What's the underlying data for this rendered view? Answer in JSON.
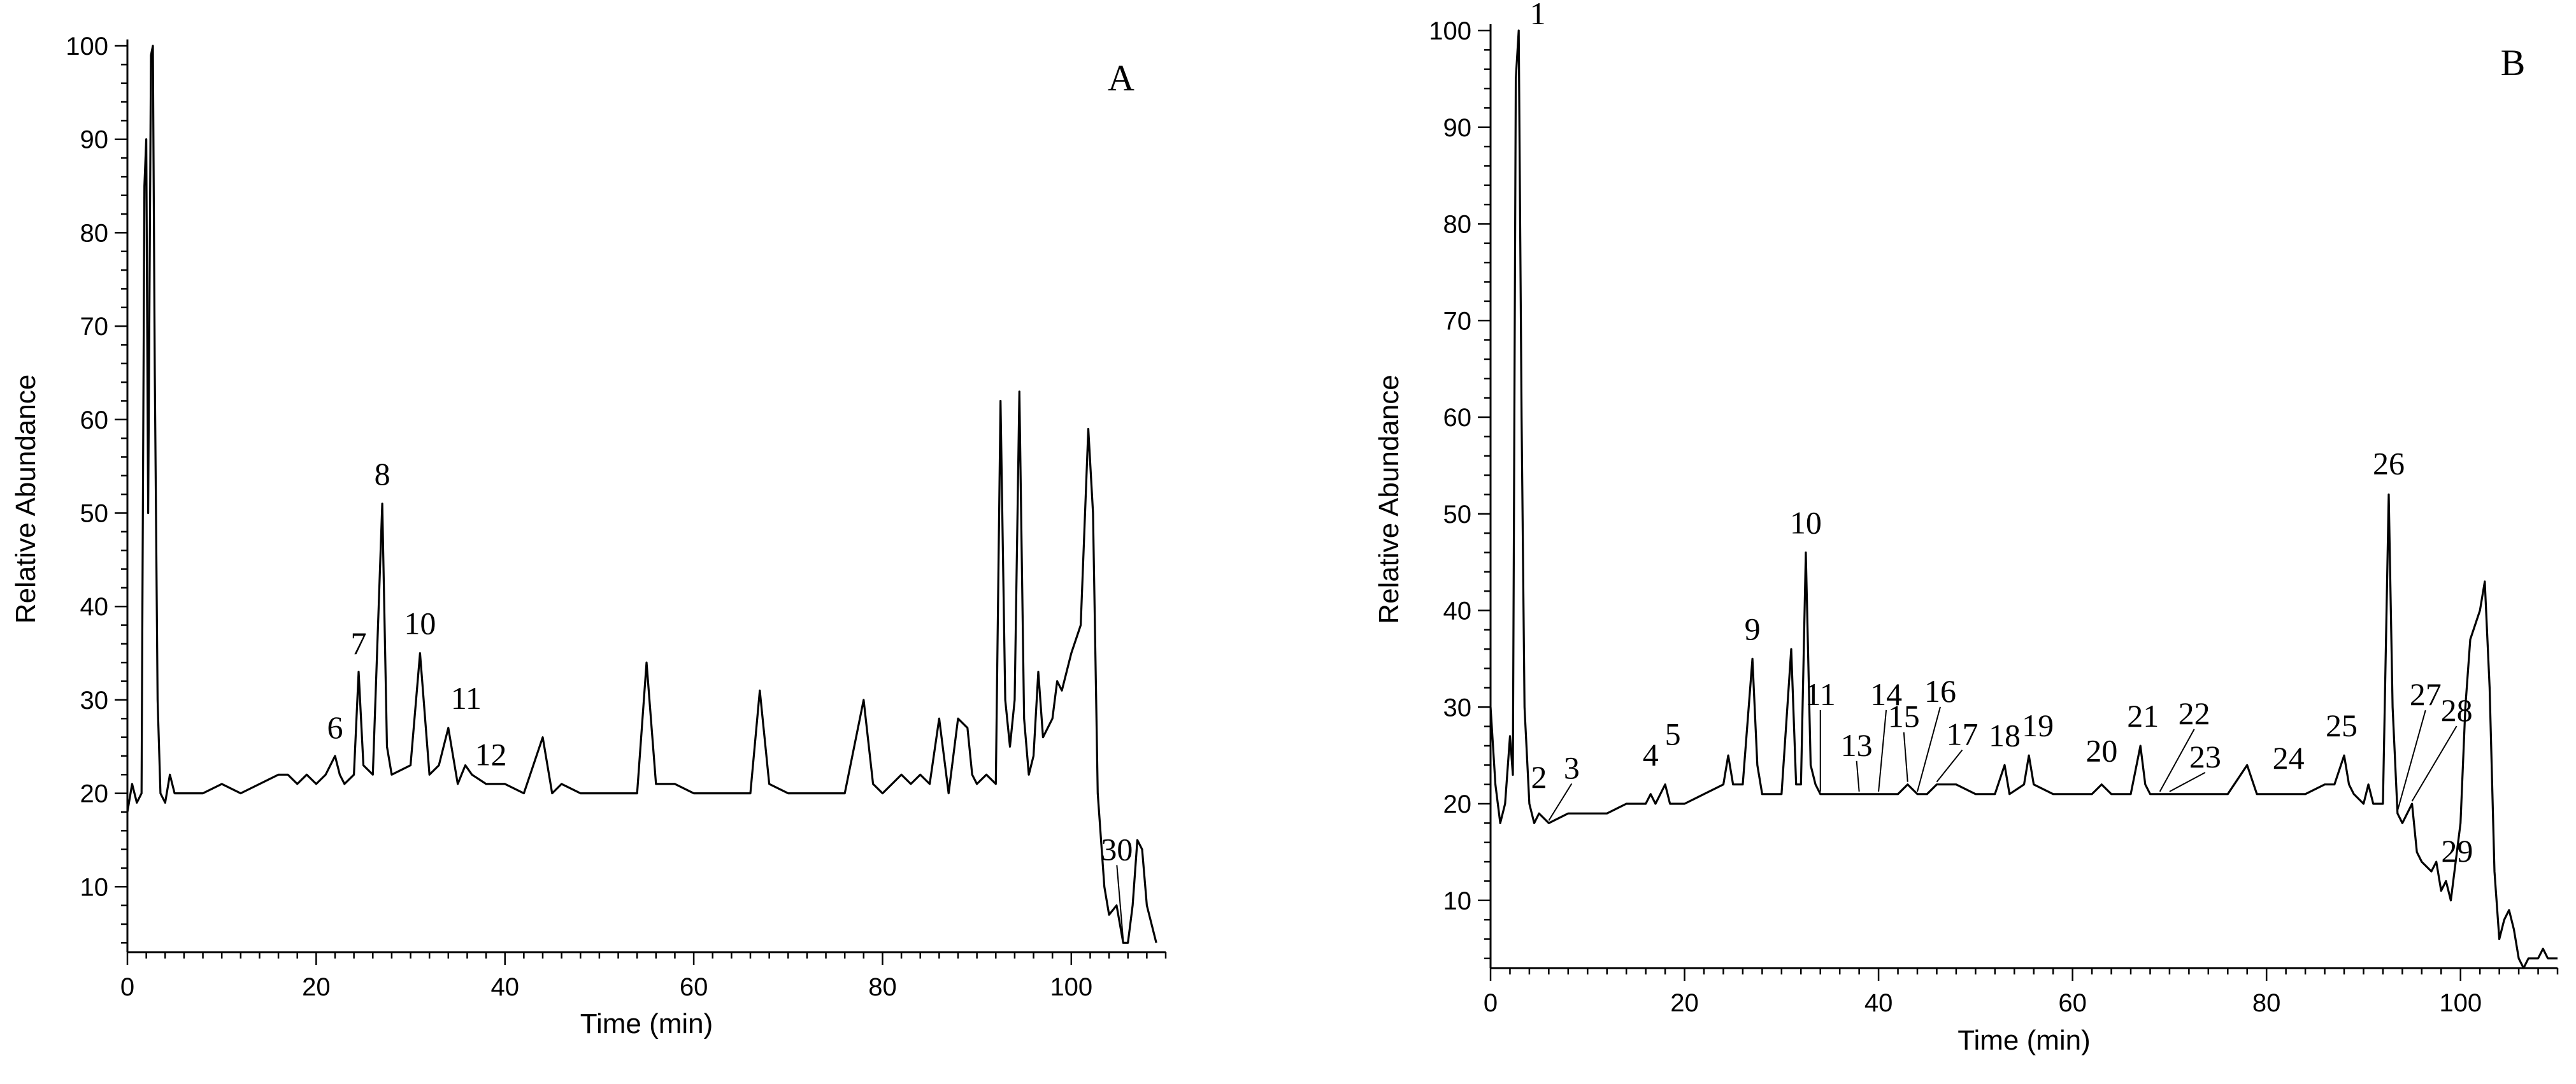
{
  "chart_data": [
    {
      "type": "line",
      "panel_label": "A",
      "xlabel": "Time (min)",
      "ylabel": "Relative Abundance",
      "xlim": [
        0,
        110
      ],
      "ylim": [
        3,
        100
      ],
      "x_ticks": [
        0,
        20,
        40,
        60,
        80,
        100
      ],
      "y_ticks": [
        10,
        20,
        30,
        40,
        50,
        60,
        70,
        80,
        90,
        100
      ],
      "baseline": 20,
      "trace_points": [
        [
          0,
          18
        ],
        [
          0.5,
          21
        ],
        [
          1,
          19
        ],
        [
          1.5,
          20
        ],
        [
          1.8,
          85
        ],
        [
          2.0,
          90
        ],
        [
          2.2,
          50
        ],
        [
          2.5,
          99
        ],
        [
          2.7,
          100
        ],
        [
          2.9,
          65
        ],
        [
          3.2,
          30
        ],
        [
          3.5,
          20
        ],
        [
          4,
          19
        ],
        [
          4.5,
          22
        ],
        [
          5,
          20
        ],
        [
          6,
          20
        ],
        [
          8,
          20
        ],
        [
          10,
          21
        ],
        [
          12,
          20
        ],
        [
          14,
          21
        ],
        [
          16,
          22
        ],
        [
          17,
          22
        ],
        [
          18,
          21
        ],
        [
          19,
          22
        ],
        [
          20,
          21
        ],
        [
          21,
          22
        ],
        [
          22,
          24
        ],
        [
          22.5,
          22
        ],
        [
          23,
          21
        ],
        [
          24,
          22
        ],
        [
          24.5,
          33
        ],
        [
          25,
          23
        ],
        [
          26,
          22
        ],
        [
          27,
          51
        ],
        [
          27.5,
          25
        ],
        [
          28,
          22
        ],
        [
          30,
          23
        ],
        [
          31,
          35
        ],
        [
          32,
          22
        ],
        [
          33,
          23
        ],
        [
          34,
          27
        ],
        [
          35,
          21
        ],
        [
          35.8,
          23
        ],
        [
          36.5,
          22
        ],
        [
          38,
          21
        ],
        [
          40,
          21
        ],
        [
          42,
          20
        ],
        [
          44,
          26
        ],
        [
          45,
          20
        ],
        [
          46,
          21
        ],
        [
          48,
          20
        ],
        [
          50,
          20
        ],
        [
          52,
          20
        ],
        [
          54,
          20
        ],
        [
          55,
          34
        ],
        [
          56,
          21
        ],
        [
          58,
          21
        ],
        [
          60,
          20
        ],
        [
          62,
          20
        ],
        [
          64,
          20
        ],
        [
          66,
          20
        ],
        [
          67,
          31
        ],
        [
          68,
          21
        ],
        [
          70,
          20
        ],
        [
          72,
          20
        ],
        [
          74,
          20
        ],
        [
          76,
          20
        ],
        [
          78,
          30
        ],
        [
          79,
          21
        ],
        [
          80,
          20
        ],
        [
          82,
          22
        ],
        [
          83,
          21
        ],
        [
          84,
          22
        ],
        [
          85,
          21
        ],
        [
          86,
          28
        ],
        [
          87,
          20
        ],
        [
          88,
          28
        ],
        [
          89,
          27
        ],
        [
          89.5,
          22
        ],
        [
          90,
          21
        ],
        [
          91,
          22
        ],
        [
          92,
          21
        ],
        [
          92.5,
          62
        ],
        [
          93,
          30
        ],
        [
          93.5,
          25
        ],
        [
          94,
          30
        ],
        [
          94.5,
          63
        ],
        [
          95,
          28
        ],
        [
          95.5,
          22
        ],
        [
          96,
          24
        ],
        [
          96.5,
          33
        ],
        [
          97,
          26
        ],
        [
          98,
          28
        ],
        [
          98.5,
          32
        ],
        [
          99,
          31
        ],
        [
          100,
          35
        ],
        [
          101,
          38
        ],
        [
          101.8,
          59
        ],
        [
          102.3,
          50
        ],
        [
          102.8,
          20
        ],
        [
          103.5,
          10
        ],
        [
          104,
          7
        ],
        [
          104.8,
          8
        ],
        [
          105.5,
          4
        ],
        [
          106,
          4
        ],
        [
          106.5,
          8
        ],
        [
          107,
          15
        ],
        [
          107.5,
          14
        ],
        [
          108,
          8
        ],
        [
          108.5,
          6
        ],
        [
          109,
          4
        ]
      ],
      "peak_labels": [
        {
          "id": "6",
          "x": 22,
          "y": 24
        },
        {
          "id": "7",
          "x": 24.5,
          "y": 33
        },
        {
          "id": "8",
          "x": 27,
          "y": 51
        },
        {
          "id": "10",
          "x": 31,
          "y": 35
        },
        {
          "id": "11",
          "x": 34,
          "y": 27
        },
        {
          "id": "12",
          "x": 35.8,
          "y": 23
        },
        {
          "id": "30",
          "x": 105.5,
          "y": 4
        }
      ]
    },
    {
      "type": "line",
      "panel_label": "B",
      "xlabel": "Time (min)",
      "ylabel": "Relative Abundance",
      "xlim": [
        0,
        110
      ],
      "ylim": [
        3,
        100
      ],
      "x_ticks": [
        0,
        20,
        40,
        60,
        80,
        100
      ],
      "y_ticks": [
        10,
        20,
        30,
        40,
        50,
        60,
        70,
        80,
        90,
        100
      ],
      "baseline": 20,
      "trace_points": [
        [
          0,
          30
        ],
        [
          0.5,
          22
        ],
        [
          1,
          18
        ],
        [
          1.5,
          20
        ],
        [
          2,
          27
        ],
        [
          2.3,
          23
        ],
        [
          2.6,
          95
        ],
        [
          2.9,
          100
        ],
        [
          3.2,
          60
        ],
        [
          3.5,
          30
        ],
        [
          4,
          20
        ],
        [
          4.5,
          18
        ],
        [
          5,
          19
        ],
        [
          6,
          18
        ],
        [
          8,
          19
        ],
        [
          10,
          19
        ],
        [
          12,
          19
        ],
        [
          14,
          20
        ],
        [
          16,
          20
        ],
        [
          16.5,
          21
        ],
        [
          17,
          20
        ],
        [
          18,
          22
        ],
        [
          18.5,
          20
        ],
        [
          20,
          20
        ],
        [
          22,
          21
        ],
        [
          24,
          22
        ],
        [
          24.5,
          25
        ],
        [
          25,
          22
        ],
        [
          26,
          22
        ],
        [
          27,
          35
        ],
        [
          27.5,
          24
        ],
        [
          28,
          21
        ],
        [
          30,
          21
        ],
        [
          31,
          36
        ],
        [
          31.5,
          22
        ],
        [
          32,
          22
        ],
        [
          32.5,
          46
        ],
        [
          33,
          24
        ],
        [
          33.5,
          22
        ],
        [
          34,
          21
        ],
        [
          36,
          21
        ],
        [
          38,
          21
        ],
        [
          40,
          21
        ],
        [
          42,
          21
        ],
        [
          43,
          22
        ],
        [
          44,
          21
        ],
        [
          45,
          21
        ],
        [
          46,
          22
        ],
        [
          48,
          22
        ],
        [
          50,
          21
        ],
        [
          52,
          21
        ],
        [
          53,
          24
        ],
        [
          53.5,
          21
        ],
        [
          55,
          22
        ],
        [
          55.5,
          25
        ],
        [
          56,
          22
        ],
        [
          58,
          21
        ],
        [
          60,
          21
        ],
        [
          62,
          21
        ],
        [
          63,
          22
        ],
        [
          64,
          21
        ],
        [
          66,
          21
        ],
        [
          67,
          26
        ],
        [
          67.5,
          22
        ],
        [
          68,
          21
        ],
        [
          70,
          21
        ],
        [
          72,
          21
        ],
        [
          74,
          21
        ],
        [
          76,
          21
        ],
        [
          78,
          24
        ],
        [
          79,
          21
        ],
        [
          80,
          21
        ],
        [
          82,
          21
        ],
        [
          84,
          21
        ],
        [
          86,
          22
        ],
        [
          87,
          22
        ],
        [
          88,
          25
        ],
        [
          88.5,
          22
        ],
        [
          89,
          21
        ],
        [
          90,
          20
        ],
        [
          90.5,
          22
        ],
        [
          91,
          20
        ],
        [
          92,
          20
        ],
        [
          92.6,
          52
        ],
        [
          93,
          30
        ],
        [
          93.5,
          19
        ],
        [
          94,
          18
        ],
        [
          95,
          20
        ],
        [
          95.5,
          15
        ],
        [
          96,
          14
        ],
        [
          97,
          13
        ],
        [
          97.5,
          14
        ],
        [
          98,
          11
        ],
        [
          98.5,
          12
        ],
        [
          99,
          10
        ],
        [
          100,
          18
        ],
        [
          100.5,
          30
        ],
        [
          101,
          37
        ],
        [
          102,
          40
        ],
        [
          102.5,
          43
        ],
        [
          103,
          32
        ],
        [
          103.5,
          13
        ],
        [
          104,
          6
        ],
        [
          104.5,
          8
        ],
        [
          105,
          9
        ],
        [
          105.5,
          7
        ],
        [
          106,
          4
        ],
        [
          106.5,
          3
        ],
        [
          107,
          4
        ],
        [
          108,
          4
        ],
        [
          108.5,
          5
        ],
        [
          109,
          4
        ],
        [
          110,
          4
        ]
      ],
      "peak_labels": [
        {
          "id": "1",
          "x": 2.9,
          "y": 100
        },
        {
          "id": "2",
          "x": 4.2,
          "y": 19
        },
        {
          "id": "3",
          "x": 6,
          "y": 18
        },
        {
          "id": "4",
          "x": 16.5,
          "y": 21
        },
        {
          "id": "5",
          "x": 18,
          "y": 22
        },
        {
          "id": "9",
          "x": 27,
          "y": 35
        },
        {
          "id": "10",
          "x": 32.5,
          "y": 46
        },
        {
          "id": "11",
          "x": 34,
          "y": 21
        },
        {
          "id": "13",
          "x": 38,
          "y": 21
        },
        {
          "id": "14",
          "x": 40,
          "y": 21
        },
        {
          "id": "15",
          "x": 43,
          "y": 22
        },
        {
          "id": "16",
          "x": 44,
          "y": 21
        },
        {
          "id": "17",
          "x": 46,
          "y": 22
        },
        {
          "id": "18",
          "x": 53,
          "y": 24
        },
        {
          "id": "19",
          "x": 55.5,
          "y": 25
        },
        {
          "id": "20",
          "x": 63,
          "y": 22
        },
        {
          "id": "21",
          "x": 67,
          "y": 26
        },
        {
          "id": "22",
          "x": 69,
          "y": 21
        },
        {
          "id": "23",
          "x": 70,
          "y": 21
        },
        {
          "id": "24",
          "x": 82,
          "y": 21
        },
        {
          "id": "25",
          "x": 88,
          "y": 25
        },
        {
          "id": "26",
          "x": 92.6,
          "y": 52
        },
        {
          "id": "27",
          "x": 93.5,
          "y": 19
        },
        {
          "id": "28",
          "x": 95,
          "y": 20
        },
        {
          "id": "29",
          "x": 96.5,
          "y": 14
        }
      ]
    }
  ]
}
